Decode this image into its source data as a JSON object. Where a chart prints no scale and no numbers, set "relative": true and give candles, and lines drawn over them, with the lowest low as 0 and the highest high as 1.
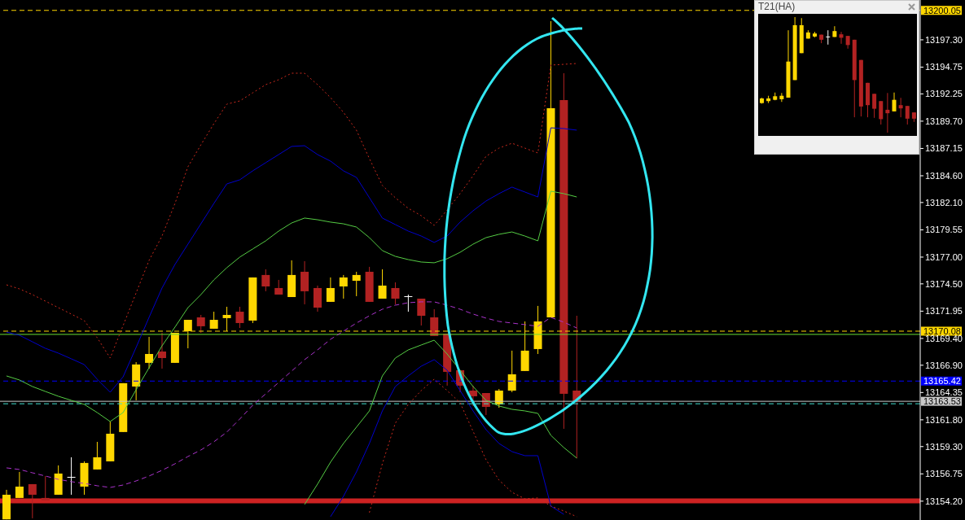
{
  "chart_data": [
    {
      "type": "candlestick",
      "categories": [
        null,
        null,
        null,
        null,
        null,
        null,
        null,
        null,
        null,
        null,
        null,
        null,
        null,
        null,
        null,
        null,
        null,
        null,
        null,
        null,
        null,
        null,
        null,
        null,
        null,
        null,
        null,
        null,
        null,
        null,
        null,
        null,
        null,
        null,
        null,
        null,
        null,
        null,
        null,
        null,
        null,
        null,
        null,
        null,
        null,
        null,
        null,
        null,
        null,
        null,
        null,
        null,
        null,
        null,
        null,
        null,
        null,
        null,
        null,
        null,
        null,
        null,
        null,
        null,
        null,
        null,
        null,
        null,
        null,
        null,
        null
      ],
      "ohlc": [
        [
          13152.5,
          13155.26,
          13152.5,
          13154.8
        ],
        [
          13154.5,
          13156.93,
          13154.5,
          13155.56
        ],
        [
          13155.79,
          13155.79,
          13152.6,
          13154.8
        ],
        [
          13154.5,
          13156.55,
          13154.27,
          13154.27
        ],
        [
          13154.8,
          13157.54,
          13154.8,
          13156.78
        ],
        [
          13156.47,
          13158.3,
          13154.8,
          13156.47
        ],
        [
          13155.56,
          13157.92,
          13154.8,
          13157.77
        ],
        [
          13157.16,
          13159.74,
          13157.16,
          13158.3
        ],
        [
          13157.92,
          13161.64,
          13157.92,
          13160.5
        ],
        [
          13160.66,
          13165.22,
          13160.66,
          13165.22
        ],
        [
          13164.91,
          13167.19,
          13163.62,
          13166.97
        ],
        [
          13167.12,
          13169.55,
          13166.58,
          13167.95
        ],
        [
          13168.18,
          13169.93,
          13166.58,
          13167.57
        ],
        [
          13167.12,
          13169.93,
          13167.12,
          13169.93
        ],
        [
          13170.08,
          13171.14,
          13168.48,
          13171.14
        ],
        [
          13171.37,
          13171.6,
          13169.93,
          13170.54
        ],
        [
          13170.31,
          13171.9,
          13170.31,
          13171.14
        ],
        [
          13171.3,
          13172.36,
          13170.08,
          13171.6
        ],
        [
          13171.9,
          13172.36,
          13170.38,
          13170.84
        ],
        [
          13171.07,
          13175.1,
          13170.84,
          13175.1
        ],
        [
          13175.33,
          13175.86,
          13173.81,
          13174.26
        ],
        [
          13174.11,
          13174.87,
          13173.5,
          13173.5
        ],
        [
          13173.27,
          13176.7,
          13173.27,
          13175.33
        ],
        [
          13175.63,
          13176.62,
          13172.59,
          13173.81
        ],
        [
          13174.11,
          13174.34,
          13171.9,
          13172.28
        ],
        [
          13172.82,
          13175.1,
          13172.82,
          13174.11
        ],
        [
          13174.26,
          13175.33,
          13173.12,
          13175.1
        ],
        [
          13174.79,
          13175.63,
          13173.35,
          13175.33
        ],
        [
          13175.63,
          13176.09,
          13172.82,
          13172.82
        ],
        [
          13173.12,
          13175.86,
          13173.12,
          13174.34
        ],
        [
          13174.11,
          13174.64,
          13172.59,
          13173.12
        ],
        [
          13173.35,
          13173.5,
          13171.9,
          13173.35
        ],
        [
          13173.12,
          13173.12,
          13170.61,
          13171.52
        ],
        [
          13171.37,
          13172.13,
          13169.63,
          13169.63
        ],
        [
          13169.85,
          13169.85,
          13164.99,
          13166.28
        ],
        [
          13166.43,
          13166.43,
          13164.38,
          13164.99
        ],
        [
          13164.53,
          13164.99,
          13163.09,
          13164.0
        ],
        [
          13164.3,
          13164.3,
          13162.25,
          13163.01
        ],
        [
          13163.24,
          13164.68,
          13162.93,
          13164.53
        ],
        [
          13164.53,
          13168.26,
          13164.38,
          13166.05
        ],
        [
          13166.36,
          13170.99,
          13166.36,
          13168.26
        ],
        [
          13168.41,
          13172.44,
          13167.95,
          13170.99
        ],
        [
          13171.37,
          13199.04,
          13171.37,
          13190.91
        ],
        [
          13191.67,
          13194.18,
          13160.96,
          13164.23
        ],
        [
          13164.53,
          13171.52,
          13158.21,
          13163.53
        ],
        null,
        null,
        null,
        null,
        null,
        null,
        null,
        null,
        null,
        null,
        null,
        null,
        null,
        null,
        null,
        null,
        null,
        null,
        null,
        null,
        null,
        null,
        null,
        null,
        null,
        null
      ],
      "colors": [
        "#ffd700",
        "#ffd700",
        "#b22222",
        "#b22222",
        "#ffd700",
        "#ffffff",
        "#ffd700",
        "#ffd700",
        "#ffd700",
        "#ffd700",
        "#ffd700",
        "#ffd700",
        "#b22222",
        "#ffd700",
        "#ffd700",
        "#b22222",
        "#ffd700",
        "#ffd700",
        "#b22222",
        "#ffd700",
        "#b22222",
        "#b22222",
        "#ffd700",
        "#b22222",
        "#b22222",
        "#ffd700",
        "#ffd700",
        "#ffd700",
        "#b22222",
        "#ffd700",
        "#b22222",
        "#ffffff",
        "#b22222",
        "#b22222",
        "#b22222",
        "#b22222",
        "#b22222",
        "#b22222",
        "#ffd700",
        "#ffd700",
        "#ffd700",
        "#ffd700",
        "#ffd700",
        "#b22222",
        "#b22222",
        null,
        null,
        null,
        null,
        null,
        null,
        null,
        null,
        null,
        null,
        null,
        null,
        null,
        null,
        null,
        null,
        null,
        null,
        null,
        null,
        null,
        null,
        null,
        null,
        null,
        null
      ],
      "series": [
        {
          "type": "line",
          "color": "#cc2a1e",
          "line_style": "dotted",
          "values": [
            13174.41,
            13174.03,
            13173.5,
            13172.89,
            13172.28,
            13171.68,
            13171.07,
            13169.47,
            13167.57,
            13170.61,
            13173.65,
            13176.69,
            13178.97,
            13182.01,
            13185.44,
            13187.49,
            13189.46,
            13191.29,
            13191.59,
            13192.35,
            13193.11,
            13193.57,
            13194.18,
            13194.18,
            13193.11,
            13191.9,
            13190.53,
            13188.86,
            13186.2,
            13183.69,
            13182.55,
            13181.56,
            13180.87,
            13179.96,
            13181.41,
            13182.93,
            13184.6,
            13186.42,
            13187.18,
            13187.64,
            13187.18,
            13186.73,
            13194.94,
            13195.01,
            13195.09,
            null,
            null,
            null,
            null,
            null,
            null,
            null,
            null,
            null,
            null,
            null,
            null,
            null,
            null,
            null,
            null,
            null,
            null,
            null,
            null,
            null,
            null,
            null,
            null,
            null,
            null
          ]
        },
        {
          "type": "line",
          "color": "#0000cc",
          "line_style": "solid",
          "values": [
            13170.0,
            13169.7,
            13169.09,
            13168.48,
            13168.03,
            13167.5,
            13166.96,
            13165.59,
            13164.38,
            13165.82,
            13168.56,
            13171.37,
            13174.11,
            13176.31,
            13178.21,
            13180.11,
            13182.01,
            13183.84,
            13184.22,
            13185.06,
            13185.82,
            13186.58,
            13187.34,
            13187.41,
            13186.58,
            13185.97,
            13185.06,
            13184.45,
            13182.55,
            13180.65,
            13180.04,
            13179.43,
            13178.97,
            13178.37,
            13178.97,
            13180.27,
            13181.33,
            13182.24,
            13182.93,
            13183.54,
            13183.08,
            13182.62,
            13189.08,
            13189.01,
            13188.86,
            null,
            null,
            null,
            null,
            null,
            null,
            null,
            null,
            null,
            null,
            null,
            null,
            null,
            null,
            null,
            null,
            null,
            null,
            null,
            null,
            null,
            null,
            null,
            null,
            null,
            null
          ]
        },
        {
          "type": "line",
          "color": "#55cc44",
          "line_style": "solid",
          "values": [
            13165.9,
            13165.52,
            13164.91,
            13164.45,
            13164.0,
            13163.62,
            13163.24,
            13162.48,
            13161.64,
            13162.48,
            13164.61,
            13166.66,
            13168.71,
            13170.46,
            13172.28,
            13173.5,
            13174.87,
            13176.01,
            13177.0,
            13177.76,
            13178.52,
            13179.43,
            13180.19,
            13180.65,
            13180.49,
            13180.27,
            13180.11,
            13179.81,
            13178.82,
            13177.61,
            13177.07,
            13176.77,
            13176.54,
            13176.47,
            13176.85,
            13177.45,
            13178.21,
            13178.82,
            13179.13,
            13179.35,
            13178.97,
            13178.52,
            13183.16,
            13182.93,
            13182.62,
            null,
            null,
            null,
            null,
            null,
            null,
            null,
            null,
            null,
            null,
            null,
            null,
            null,
            null,
            null,
            null,
            null,
            null,
            null,
            null,
            null,
            null,
            null,
            null,
            null,
            null
          ]
        },
        {
          "type": "line",
          "color": "#aa33cc",
          "line_style": "dashed",
          "values": [
            13157.31,
            13157.16,
            13156.85,
            13156.55,
            13156.24,
            13156.02,
            13155.86,
            13155.64,
            13155.48,
            13155.71,
            13156.09,
            13156.55,
            13157.08,
            13157.69,
            13158.37,
            13158.98,
            13159.74,
            13160.65,
            13161.87,
            13163.16,
            13164.23,
            13165.29,
            13166.35,
            13167.42,
            13168.33,
            13169.32,
            13170.08,
            13170.84,
            13171.52,
            13172.13,
            13172.51,
            13172.74,
            13172.82,
            13172.82,
            13172.51,
            13172.13,
            13171.68,
            13171.3,
            13170.99,
            13170.84,
            13170.69,
            13170.54,
            13171.37,
            13170.92,
            13170.38,
            null,
            null,
            null,
            null,
            null,
            null,
            null,
            null,
            null,
            null,
            null,
            null,
            null,
            null,
            null,
            null,
            null,
            null,
            null,
            null,
            null,
            null,
            null,
            null,
            null,
            null
          ]
        },
        {
          "type": "line",
          "color": "#55cc44",
          "line_style": "solid",
          "values": [
            null,
            null,
            null,
            null,
            null,
            null,
            null,
            null,
            null,
            null,
            null,
            null,
            null,
            null,
            null,
            null,
            null,
            null,
            null,
            null,
            null,
            null,
            null,
            13153.89,
            13155.79,
            13157.84,
            13159.59,
            13161.11,
            13162.63,
            13165.9,
            13167.57,
            13168.33,
            13168.79,
            13169.24,
            13167.95,
            13166.43,
            13164.91,
            13163.62,
            13163.09,
            13162.78,
            13162.63,
            13162.4,
            13160.35,
            13159.21,
            13158.22,
            null,
            null,
            null,
            null,
            null,
            null,
            null,
            null,
            null,
            null,
            null,
            null,
            null,
            null,
            null,
            null,
            null,
            null,
            null,
            null,
            null,
            null,
            null,
            null,
            null,
            null
          ]
        },
        {
          "type": "line",
          "color": "#0000cc",
          "line_style": "solid",
          "values": [
            null,
            null,
            null,
            null,
            null,
            null,
            null,
            null,
            null,
            null,
            null,
            null,
            null,
            null,
            null,
            null,
            null,
            null,
            null,
            null,
            null,
            null,
            null,
            null,
            null,
            13152.75,
            13154.65,
            13156.93,
            13159.59,
            13162.63,
            13164.91,
            13165.9,
            13166.81,
            13167.42,
            13166.43,
            13164.53,
            13162.63,
            13160.88,
            13159.59,
            13158.83,
            13158.45,
            13158.45,
            13153.74,
            13152.97,
            null,
            null,
            null,
            null,
            null,
            null,
            null,
            null,
            null,
            null,
            null,
            null,
            null,
            null,
            null,
            null,
            null,
            null,
            null,
            null,
            null,
            null,
            null,
            null,
            null,
            null,
            null
          ]
        },
        {
          "type": "line",
          "color": "#cc2a1e",
          "line_style": "dotted",
          "values": [
            null,
            null,
            null,
            null,
            null,
            null,
            null,
            null,
            null,
            null,
            null,
            null,
            null,
            null,
            null,
            null,
            null,
            null,
            null,
            null,
            null,
            null,
            null,
            null,
            null,
            null,
            null,
            null,
            13153.13,
            13157.69,
            13161.49,
            13163.24,
            13164.53,
            13165.59,
            13164.53,
            13163.39,
            13160.73,
            13158.07,
            13156.17,
            13155.03,
            13154.42,
            13154.5,
            13153.74,
            13153.28,
            13152.75,
            null,
            null,
            null,
            null,
            null,
            null,
            null,
            null,
            null,
            null,
            null,
            null,
            null,
            null,
            null,
            null,
            null,
            null,
            null,
            null,
            null,
            null,
            null,
            null,
            null,
            null
          ]
        }
      ],
      "ylim": [
        13152.44,
        13201.02
      ],
      "yticks": [
        {
          "value": 13154.2,
          "label": "13154.20"
        },
        {
          "value": 13156.75,
          "label": "13156.75"
        },
        {
          "value": 13159.3,
          "label": "13159.30"
        },
        {
          "value": 13161.8,
          "label": "13161.80"
        },
        {
          "value": 13164.35,
          "label": "13164.35"
        },
        {
          "value": 13166.9,
          "label": "13166.90"
        },
        {
          "value": 13169.4,
          "label": "13169.40"
        },
        {
          "value": 13171.95,
          "label": "13171.95"
        },
        {
          "value": 13174.5,
          "label": "13174.50"
        },
        {
          "value": 13177,
          "label": "13177.00"
        },
        {
          "value": 13179.55,
          "label": "13179.55"
        },
        {
          "value": 13182.1,
          "label": "13182.10"
        },
        {
          "value": 13184.6,
          "label": "13184.60"
        },
        {
          "value": 13187.15,
          "label": "13187.15"
        },
        {
          "value": 13189.7,
          "label": "13189.70"
        },
        {
          "value": 13192.25,
          "label": "13192.25"
        },
        {
          "value": 13194.75,
          "label": "13194.75"
        },
        {
          "value": 13197.3,
          "label": "13197.30"
        }
      ],
      "tick_labels": "y",
      "ref_lines": [
        {
          "axis": "y",
          "value": 13200.05,
          "label": "13200.05",
          "color": "#ffd700",
          "line_style": "dashed"
        },
        {
          "axis": "y",
          "value": 13170.08,
          "label": "13170.08",
          "color": "#ffd700",
          "line_style": "dashed"
        },
        {
          "axis": "y",
          "value": 13169.78,
          "color": "#66dd33",
          "line_style": "solid"
        },
        {
          "axis": "y",
          "value": 13165.42,
          "label": "13165.42",
          "color": "#0000ff",
          "line_style": "dashed"
        },
        {
          "axis": "y",
          "value": 13163.53,
          "label": "13163.53",
          "color": "#c8c8c8",
          "line_style": "solid"
        },
        {
          "axis": "y",
          "value": 13163.3,
          "color": "#40e0d0",
          "line_style": "dashed"
        }
      ],
      "bands": [
        {
          "axis": "y",
          "from": 13154.0,
          "to": 13154.45,
          "color": "#cc2222"
        }
      ]
    },
    {
      "type": "candlestick",
      "title": "T21(HA)",
      "relative": true,
      "tick_labels": false,
      "categories": [
        null,
        null,
        null,
        null,
        null,
        null,
        null,
        null,
        null,
        null,
        null,
        null,
        null,
        null,
        null,
        null,
        null,
        null,
        null,
        null,
        null,
        null,
        null,
        null
      ],
      "ohlc": [
        [
          0.256,
          0.301,
          0.251,
          0.296
        ],
        [
          0.273,
          0.319,
          0.256,
          0.296
        ],
        [
          0.284,
          0.347,
          0.28,
          0.315
        ],
        [
          0.289,
          0.343,
          0.266,
          0.319
        ],
        [
          0.303,
          0.886,
          0.303,
          0.615
        ],
        [
          0.455,
          1,
          0.455,
          0.93
        ],
        [
          0.688,
          0.991,
          0.688,
          0.93
        ],
        [
          0.814,
          0.886,
          0.814,
          0.867
        ],
        [
          0.832,
          0.872,
          0.825,
          0.858
        ],
        [
          0.848,
          0.848,
          0.774,
          0.804
        ],
        [
          0.832,
          0.886,
          0.762,
          0.832
        ],
        [
          0.828,
          0.921,
          0.828,
          0.879
        ],
        [
          0.851,
          0.872,
          0.769,
          0.821
        ],
        [
          0.837,
          0.837,
          0.727,
          0.758
        ],
        [
          0.804,
          0.804,
          0.133,
          0.455
        ],
        [
          0.629,
          0.629,
          0.14,
          0.226
        ],
        [
          0.431,
          0.431,
          0.133,
          0.238
        ],
        [
          0.336,
          0.336,
          0.128,
          0.207
        ],
        [
          0.273,
          0.273,
          0.07,
          0.117
        ],
        [
          0.198,
          0.343,
          0,
          0.168
        ],
        [
          0.184,
          0.347,
          0.184,
          0.284
        ],
        [
          0.238,
          0.301,
          0.133,
          0.21
        ],
        [
          0.231,
          0.231,
          0.07,
          0.121
        ],
        [
          0.175,
          0.175,
          0.093,
          0.121
        ]
      ],
      "colors": [
        "#ffd700",
        "#ffd700",
        "#ffd700",
        "#ffd700",
        "#ffd700",
        "#ffd700",
        "#ffd700",
        "#ffd700",
        "#ffd700",
        "#b22222",
        "#ffffff",
        "#ffd700",
        "#b22222",
        "#b22222",
        "#b22222",
        "#b22222",
        "#b22222",
        "#b22222",
        "#b22222",
        "#b22222",
        "#ffd700",
        "#b22222",
        "#b22222",
        "#b22222"
      ]
    }
  ]
}
